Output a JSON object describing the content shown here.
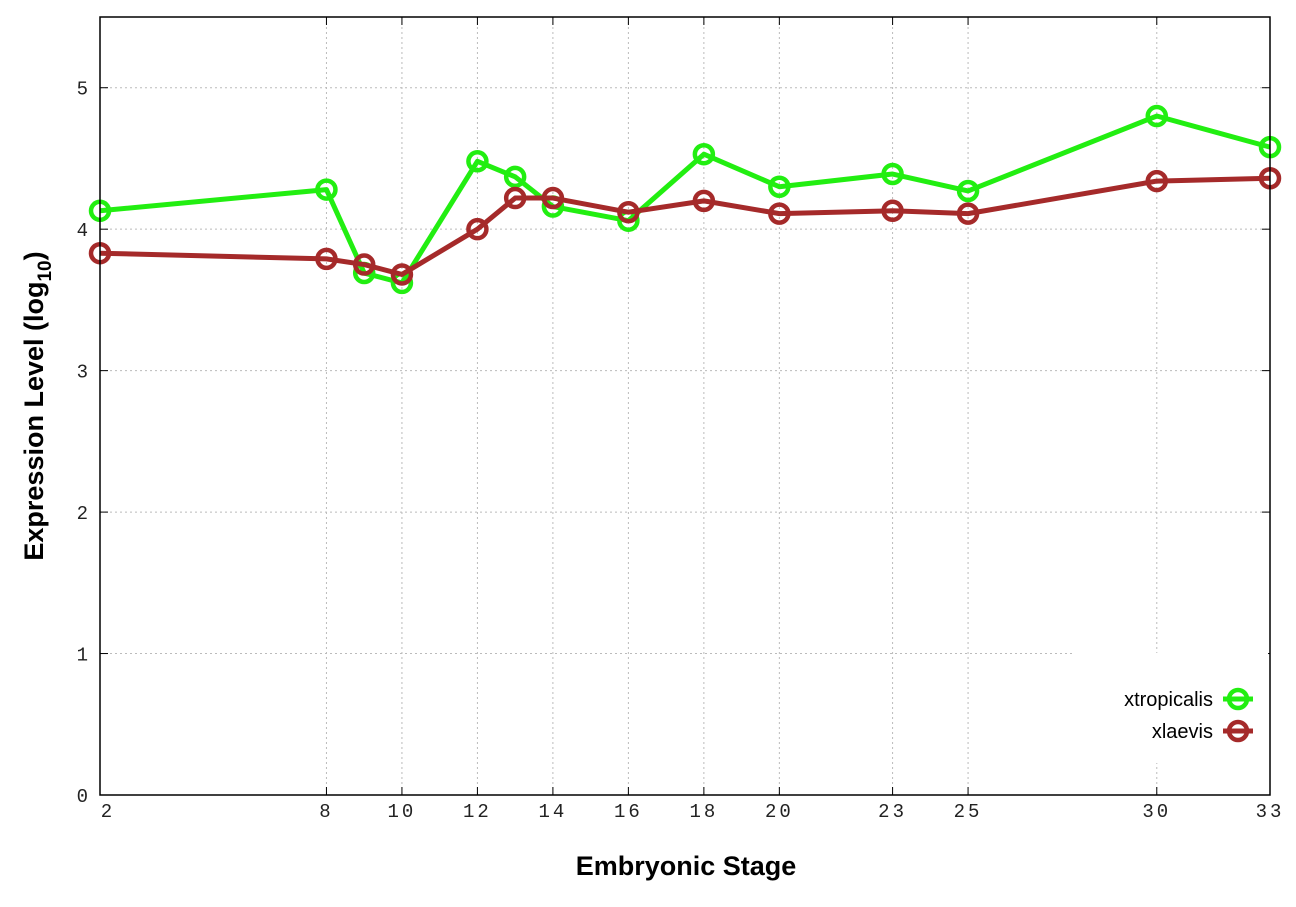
{
  "chart_data": {
    "type": "line",
    "title": "",
    "xlabel": "Embryonic Stage",
    "ylabel_main": "Expression Level (log",
    "ylabel_sub": "10",
    "ylabel_close": ")",
    "xlim": [
      2,
      33
    ],
    "ylim": [
      0,
      5.5
    ],
    "x_ticks": [
      2,
      8,
      10,
      12,
      14,
      16,
      18,
      20,
      23,
      25,
      30,
      33
    ],
    "y_ticks": [
      0,
      1,
      2,
      3,
      4,
      5
    ],
    "grid": true,
    "legend_position": "bottom-right",
    "x": [
      2,
      8,
      9,
      10,
      12,
      13,
      14,
      16,
      18,
      20,
      23,
      25,
      30,
      33
    ],
    "series": [
      {
        "name": "xtropicalis",
        "color": "#22ee11",
        "values": [
          4.13,
          4.28,
          3.69,
          3.62,
          4.48,
          4.37,
          4.16,
          4.06,
          4.53,
          4.3,
          4.39,
          4.27,
          4.8,
          4.58
        ]
      },
      {
        "name": "xlaevis",
        "color": "#a52a2a",
        "values": [
          3.83,
          3.79,
          3.75,
          3.68,
          4.0,
          4.22,
          4.22,
          4.12,
          4.2,
          4.11,
          4.13,
          4.11,
          4.34,
          4.36
        ]
      }
    ]
  }
}
